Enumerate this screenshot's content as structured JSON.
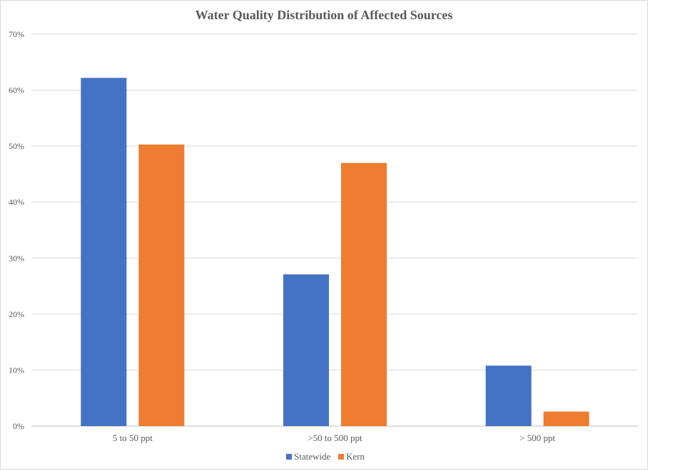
{
  "chart_data": {
    "type": "bar",
    "title": "Water Quality Distribution of Affected Sources",
    "xlabel": "",
    "ylabel": "",
    "categories": [
      "5 to 50 ppt",
      ">50 to 500 ppt",
      "> 500 ppt"
    ],
    "series": [
      {
        "name": "Statewide",
        "color": "#4472c4",
        "values": [
          62.2,
          27.1,
          10.8
        ]
      },
      {
        "name": "Kern",
        "color": "#ed7d31",
        "values": [
          50.3,
          47.0,
          2.6
        ]
      }
    ],
    "ylim": [
      0,
      70
    ],
    "yticks": [
      0,
      10,
      20,
      30,
      40,
      50,
      60,
      70
    ],
    "ytick_labels": [
      "0%",
      "10%",
      "20%",
      "30%",
      "40%",
      "50%",
      "60%",
      "70%"
    ],
    "grid": true,
    "legend_position": "bottom"
  }
}
